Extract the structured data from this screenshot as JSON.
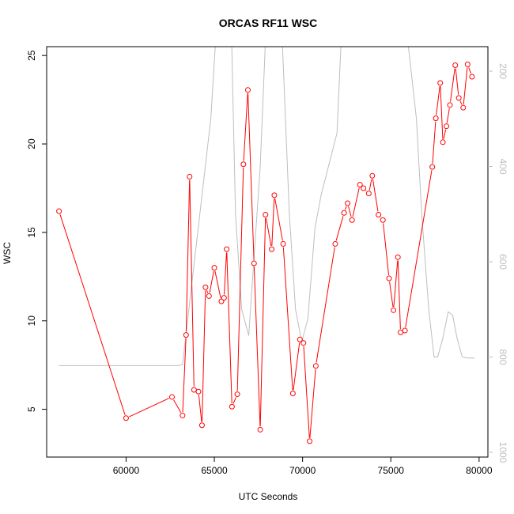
{
  "chart_data": {
    "type": "line",
    "title": "ORCAS RF11 WSC",
    "xlabel": "UTC Seconds",
    "ylabel": "WSC",
    "xlim": [
      55500,
      80500
    ],
    "ylim": [
      2.3,
      25.5
    ],
    "x_ticks": [
      60000,
      65000,
      70000,
      75000,
      80000
    ],
    "y_ticks": [
      5,
      10,
      15,
      20,
      25
    ],
    "y2_ticks": [
      200,
      400,
      600,
      800,
      1000
    ],
    "y2_reversed": true,
    "y2_ylim_note": "secondary right axis, reversed (pressure-like), color gray",
    "grid": false,
    "legend": "none",
    "colors": {
      "primary_series": "#ff0000",
      "secondary_series": "#bebebe",
      "axes": "#000000"
    },
    "series": [
      {
        "axis": "left",
        "style": "line+points",
        "points": [
          [
            56200,
            16.2
          ],
          [
            60000,
            4.5
          ],
          [
            62600,
            5.7
          ],
          [
            63200,
            4.65
          ],
          [
            63400,
            9.2
          ],
          [
            63600,
            18.15
          ],
          [
            63850,
            6.1
          ],
          [
            64100,
            6.0
          ],
          [
            64300,
            4.1
          ],
          [
            64500,
            11.9
          ],
          [
            64700,
            11.4
          ],
          [
            65000,
            13.0
          ],
          [
            65400,
            11.1
          ],
          [
            65550,
            11.3
          ],
          [
            65700,
            14.05
          ],
          [
            66000,
            5.15
          ],
          [
            66300,
            5.85
          ],
          [
            66650,
            18.85
          ],
          [
            66900,
            23.05
          ],
          [
            67250,
            13.25
          ],
          [
            67600,
            3.85
          ],
          [
            67900,
            16.0
          ],
          [
            68250,
            14.05
          ],
          [
            68400,
            17.1
          ],
          [
            68900,
            14.35
          ],
          [
            69450,
            5.9
          ],
          [
            69850,
            8.95
          ],
          [
            70050,
            8.75
          ],
          [
            70400,
            3.2
          ],
          [
            70750,
            7.45
          ],
          [
            71850,
            14.35
          ],
          [
            72350,
            16.1
          ],
          [
            72550,
            16.65
          ],
          [
            72800,
            15.7
          ],
          [
            73250,
            17.7
          ],
          [
            73450,
            17.5
          ],
          [
            73750,
            17.2
          ],
          [
            73950,
            18.2
          ],
          [
            74300,
            16.0
          ],
          [
            74550,
            15.7
          ],
          [
            74900,
            12.4
          ],
          [
            75150,
            10.6
          ],
          [
            75400,
            13.6
          ],
          [
            75550,
            9.35
          ],
          [
            75800,
            9.45
          ],
          [
            77350,
            18.7
          ],
          [
            77550,
            21.45
          ],
          [
            77800,
            23.45
          ],
          [
            77950,
            20.1
          ],
          [
            78150,
            21.0
          ],
          [
            78350,
            22.2
          ],
          [
            78650,
            24.45
          ],
          [
            78850,
            22.6
          ],
          [
            79100,
            22.05
          ],
          [
            79350,
            24.5
          ],
          [
            79600,
            23.8
          ]
        ]
      },
      {
        "axis": "right",
        "style": "line",
        "points": [
          [
            56200,
            818
          ],
          [
            63000,
            818
          ],
          [
            63200,
            815
          ],
          [
            64800,
            300
          ],
          [
            65300,
            0
          ],
          [
            65900,
            0
          ],
          [
            66200,
            500
          ],
          [
            66550,
            700
          ],
          [
            66950,
            755
          ],
          [
            67600,
            400
          ],
          [
            68050,
            0
          ],
          [
            68700,
            0
          ],
          [
            69250,
            500
          ],
          [
            69600,
            700
          ],
          [
            69950,
            768
          ],
          [
            70300,
            720
          ],
          [
            70700,
            530
          ],
          [
            71050,
            460
          ],
          [
            71950,
            330
          ],
          [
            72350,
            0
          ],
          [
            73150,
            0
          ],
          [
            73250,
            120
          ],
          [
            73550,
            120
          ],
          [
            73600,
            0
          ],
          [
            74200,
            0
          ],
          [
            74250,
            120
          ],
          [
            74550,
            120
          ],
          [
            74600,
            0
          ],
          [
            75550,
            0
          ],
          [
            76450,
            300
          ],
          [
            76750,
            500
          ],
          [
            77150,
            700
          ],
          [
            77450,
            800
          ],
          [
            77650,
            800
          ],
          [
            77950,
            760
          ],
          [
            78250,
            705
          ],
          [
            78500,
            712
          ],
          [
            78750,
            760
          ],
          [
            79050,
            800
          ],
          [
            79350,
            802
          ],
          [
            79750,
            802
          ]
        ]
      }
    ]
  }
}
